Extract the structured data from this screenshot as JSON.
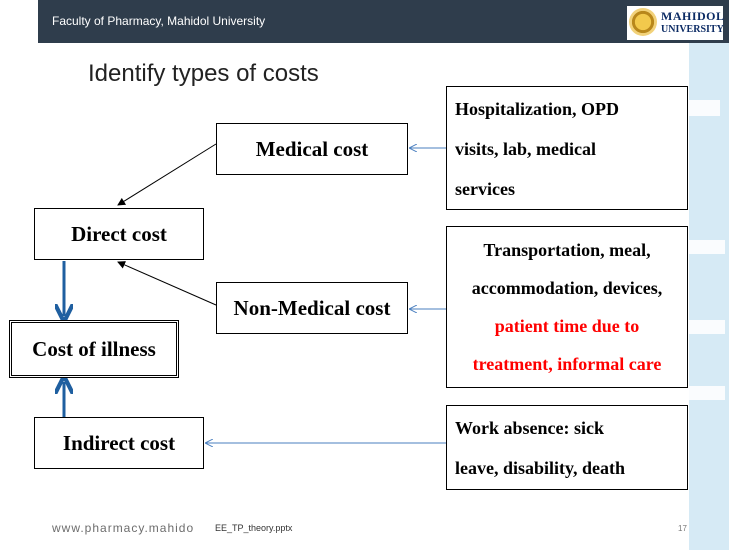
{
  "header": {
    "institution": "Faculty of Pharmacy, Mahidol University"
  },
  "logo": {
    "line1": "MAHIDOL",
    "line2": "UNIVERSITY"
  },
  "title": "Identify types of costs",
  "nodes": {
    "medical_cost": "Medical cost",
    "non_medical_cost": "Non-Medical cost",
    "direct_cost": "Direct cost",
    "cost_of_illness": "Cost of illness",
    "indirect_cost": "Indirect cost"
  },
  "descriptions": {
    "medical": [
      "Hospitalization, OPD",
      "visits,  lab,  medical",
      "services"
    ],
    "non_medical": [
      "Transportation, meal,",
      "accommodation, devices,"
    ],
    "non_medical_highlight": [
      "patient time due to",
      "treatment, informal care"
    ],
    "indirect": [
      "Work absence: sick",
      "leave, disability, death"
    ]
  },
  "colors": {
    "header_bg": "#2f3d4c",
    "highlight": "#ff0000",
    "arrow_blue": "#1f5fa0",
    "thin_arrow": "#4a7fbf"
  },
  "footer": {
    "url": "www.pharmacy.mahido",
    "file": "EE_TP_theory.pptx",
    "page": "17"
  }
}
